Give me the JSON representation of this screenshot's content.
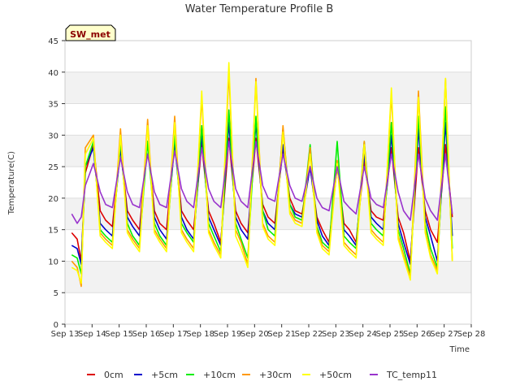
{
  "chart_data": {
    "type": "line",
    "title": "Water Temperature Profile B",
    "xlabel": "Time",
    "ylabel": "Temperature(C)",
    "badge": "SW_met",
    "ylim": [
      0,
      45
    ],
    "yticks": [
      0,
      5,
      10,
      15,
      20,
      25,
      30,
      35,
      40,
      45
    ],
    "xlim": [
      13,
      28
    ],
    "xticks": [
      {
        "value": 13,
        "label": "Sep 13"
      },
      {
        "value": 14,
        "label": "Sep 14"
      },
      {
        "value": 15,
        "label": "Sep 15"
      },
      {
        "value": 16,
        "label": "Sep 16"
      },
      {
        "value": 17,
        "label": "Sep 17"
      },
      {
        "value": 18,
        "label": "Sep 18"
      },
      {
        "value": 19,
        "label": "Sep 19"
      },
      {
        "value": 20,
        "label": "Sep 20"
      },
      {
        "value": 21,
        "label": "Sep 21"
      },
      {
        "value": 22,
        "label": "Sep 22"
      },
      {
        "value": 23,
        "label": "Sep 23"
      },
      {
        "value": 24,
        "label": "Sep 24"
      },
      {
        "value": 25,
        "label": "Sep 25"
      },
      {
        "value": 26,
        "label": "Sep 26"
      },
      {
        "value": 27,
        "label": "Sep 27"
      },
      {
        "value": 28,
        "label": "Sep 28"
      }
    ],
    "band_color": "#f2f2f2",
    "legend_position": "bottom",
    "series": [
      {
        "name": "0cm",
        "color": "#dd0000",
        "x": [
          13.25,
          13.45,
          13.6,
          13.75,
          14.05,
          14.3,
          14.5,
          14.75,
          15.05,
          15.3,
          15.5,
          15.75,
          16.05,
          16.3,
          16.5,
          16.75,
          17.05,
          17.3,
          17.5,
          17.75,
          18.05,
          18.3,
          18.5,
          18.75,
          19.05,
          19.3,
          19.5,
          19.75,
          20.05,
          20.3,
          20.5,
          20.75,
          21.05,
          21.3,
          21.5,
          21.75,
          22.05,
          22.3,
          22.5,
          22.75,
          23.05,
          23.3,
          23.5,
          23.75,
          24.05,
          24.3,
          24.5,
          24.75,
          25.05,
          25.3,
          25.5,
          25.75,
          26.05,
          26.3,
          26.5,
          26.75,
          27.05,
          27.3
        ],
        "y": [
          14.5,
          13.5,
          10,
          24,
          28.5,
          18,
          16.5,
          15.5,
          28,
          18,
          16.5,
          15,
          29,
          18,
          16,
          15,
          29.5,
          18,
          16.5,
          15,
          28.5,
          18,
          16,
          13,
          29.5,
          18,
          16,
          14.5,
          29.5,
          19,
          17,
          16,
          28,
          20,
          18,
          17.5,
          25,
          17,
          15,
          13,
          25,
          16,
          15,
          13,
          26,
          18,
          17,
          16.5,
          28,
          17,
          14.5,
          10,
          28,
          18,
          15,
          13,
          28.5,
          17
        ]
      },
      {
        "name": "+5cm",
        "color": "#0000cc",
        "x": [
          13.25,
          13.45,
          13.6,
          13.75,
          14.05,
          14.3,
          14.5,
          14.75,
          15.05,
          15.3,
          15.5,
          15.75,
          16.05,
          16.3,
          16.5,
          16.75,
          17.05,
          17.3,
          17.5,
          17.75,
          18.05,
          18.3,
          18.5,
          18.75,
          19.05,
          19.3,
          19.5,
          19.75,
          20.05,
          20.3,
          20.5,
          20.75,
          21.05,
          21.3,
          21.5,
          21.75,
          22.05,
          22.3,
          22.5,
          22.75,
          23.05,
          23.3,
          23.5,
          23.75,
          24.05,
          24.3,
          24.5,
          24.75,
          25.05,
          25.3,
          25.5,
          25.75,
          26.05,
          26.3,
          26.5,
          26.75,
          27.05,
          27.3
        ],
        "y": [
          12.5,
          12,
          9.5,
          25,
          28,
          16,
          15,
          14,
          28,
          17,
          15.5,
          14,
          29,
          17,
          15,
          13.5,
          29,
          17,
          15,
          13.5,
          30,
          17,
          15,
          12.5,
          32,
          17,
          15,
          13.5,
          32,
          18,
          16,
          15,
          28.5,
          19,
          17.5,
          17,
          25,
          16.5,
          14,
          12.5,
          25.5,
          15,
          14,
          12.5,
          27,
          17,
          16,
          15,
          30,
          16,
          13,
          9.5,
          31,
          17,
          14,
          10,
          32,
          14
        ]
      },
      {
        "name": "+10cm",
        "color": "#00ee00",
        "x": [
          13.25,
          13.45,
          13.6,
          13.75,
          14.05,
          14.3,
          14.5,
          14.75,
          15.05,
          15.3,
          15.5,
          15.75,
          16.05,
          16.3,
          16.5,
          16.75,
          17.05,
          17.3,
          17.5,
          17.75,
          18.05,
          18.3,
          18.5,
          18.75,
          19.05,
          19.3,
          19.5,
          19.75,
          20.05,
          20.3,
          20.5,
          20.75,
          21.05,
          21.3,
          21.5,
          21.75,
          22.05,
          22.3,
          22.5,
          22.75,
          23.05,
          23.3,
          23.5,
          23.75,
          24.05,
          24.3,
          24.5,
          24.75,
          25.05,
          25.3,
          25.5,
          25.75,
          26.05,
          26.3,
          26.5,
          26.75,
          27.05,
          27.3
        ],
        "y": [
          11,
          10.5,
          8,
          25,
          29,
          15,
          14,
          13,
          29,
          16,
          14,
          12.5,
          29,
          16,
          14,
          12.5,
          30,
          16,
          14.5,
          13,
          31.5,
          16,
          14,
          11.5,
          34,
          16,
          13.5,
          10.5,
          33,
          18,
          15,
          14,
          31,
          19,
          17,
          16.5,
          28.5,
          15.5,
          13,
          12,
          29,
          14,
          13,
          12,
          29,
          16,
          15,
          14,
          32,
          15,
          12,
          8,
          33,
          16,
          12,
          9,
          34.5,
          12
        ]
      },
      {
        "name": "+30cm",
        "color": "#ff9900",
        "x": [
          13.25,
          13.45,
          13.6,
          13.75,
          14.05,
          14.3,
          14.5,
          14.75,
          15.05,
          15.3,
          15.5,
          15.75,
          16.05,
          16.3,
          16.5,
          16.75,
          17.05,
          17.3,
          17.5,
          17.75,
          18.05,
          18.3,
          18.5,
          18.75,
          19.05,
          19.3,
          19.5,
          19.75,
          20.05,
          20.3,
          20.5,
          20.75,
          21.05,
          21.3,
          21.5,
          21.75,
          22.05,
          22.3,
          22.5,
          22.75,
          23.05,
          23.3,
          23.5,
          23.75,
          24.05,
          24.3,
          24.5,
          24.75,
          25.05,
          25.3,
          25.5,
          25.75,
          26.05,
          26.3,
          26.5,
          26.75,
          27.05,
          27.3
        ],
        "y": [
          10,
          9,
          6,
          28,
          30,
          14.5,
          13.5,
          12.5,
          31,
          15,
          13.5,
          12,
          32.5,
          15,
          13.5,
          12,
          33,
          15,
          13.5,
          12,
          36,
          15,
          13,
          11,
          40,
          15,
          13,
          9.5,
          39,
          16,
          14,
          13,
          31.5,
          18,
          16.5,
          16,
          28,
          15,
          12.5,
          11.5,
          26,
          13,
          12,
          11,
          29,
          15,
          14,
          13,
          36.5,
          14,
          11,
          7.5,
          37,
          15,
          11,
          8.5,
          39,
          10
        ]
      },
      {
        "name": "+50cm",
        "color": "#ffff00",
        "x": [
          13.25,
          13.45,
          13.6,
          13.75,
          14.05,
          14.3,
          14.5,
          14.75,
          15.05,
          15.3,
          15.5,
          15.75,
          16.05,
          16.3,
          16.5,
          16.75,
          17.05,
          17.3,
          17.5,
          17.75,
          18.05,
          18.3,
          18.5,
          18.75,
          19.05,
          19.3,
          19.5,
          19.75,
          20.05,
          20.3,
          20.5,
          20.75,
          21.05,
          21.3,
          21.5,
          21.75,
          22.05,
          22.3,
          22.5,
          22.75,
          23.05,
          23.3,
          23.5,
          23.75,
          24.05,
          24.3,
          24.5,
          24.75,
          25.05,
          25.3,
          25.5,
          25.75,
          26.05,
          26.3,
          26.5,
          26.75,
          27.05,
          27.3
        ],
        "y": [
          9,
          8.5,
          6.5,
          27,
          29.5,
          14,
          13,
          12,
          30,
          14.5,
          13,
          11.5,
          31.5,
          14.5,
          13,
          11.5,
          32,
          14.5,
          13,
          11.5,
          37,
          14.5,
          12.5,
          10.5,
          41.5,
          14,
          12,
          9,
          38.5,
          15.5,
          13.5,
          12.5,
          30.5,
          17.5,
          16,
          15.5,
          27,
          14.5,
          12,
          11,
          25.5,
          12.5,
          11.5,
          10.5,
          28.5,
          14.5,
          13.5,
          12.5,
          37.5,
          13.5,
          10.5,
          7,
          36,
          14.5,
          10.5,
          8,
          39,
          10
        ]
      },
      {
        "name": "TC_temp11",
        "color": "#9933cc",
        "x": [
          13.25,
          13.45,
          13.6,
          13.75,
          14.05,
          14.3,
          14.5,
          14.75,
          15.05,
          15.3,
          15.5,
          15.75,
          16.05,
          16.3,
          16.5,
          16.75,
          17.05,
          17.3,
          17.5,
          17.75,
          18.05,
          18.3,
          18.5,
          18.75,
          19.05,
          19.3,
          19.5,
          19.75,
          20.05,
          20.3,
          20.5,
          20.75,
          21.05,
          21.3,
          21.5,
          21.75,
          22.05,
          22.3,
          22.5,
          22.75,
          23.05,
          23.3,
          23.5,
          23.75,
          24.05,
          24.3,
          24.5,
          24.75,
          25.05,
          25.3,
          25.5,
          25.75,
          26.05,
          26.3,
          26.5,
          26.75,
          27.05,
          27.3
        ],
        "y": [
          17.5,
          16,
          17,
          22,
          25.5,
          21,
          19,
          18.5,
          26.5,
          21,
          19,
          18.5,
          27,
          21,
          19,
          18.5,
          27.5,
          21.5,
          19.5,
          18.5,
          28,
          21.5,
          19.5,
          18.5,
          29,
          21.5,
          19.5,
          18.5,
          29,
          22,
          20,
          19.5,
          27,
          22,
          20,
          19.5,
          25,
          20,
          18.5,
          18,
          25,
          19.5,
          18.5,
          17.5,
          25,
          20,
          19,
          18.5,
          27,
          21,
          18,
          16.5,
          27,
          20,
          18,
          16.5,
          27,
          17.5
        ]
      }
    ]
  }
}
